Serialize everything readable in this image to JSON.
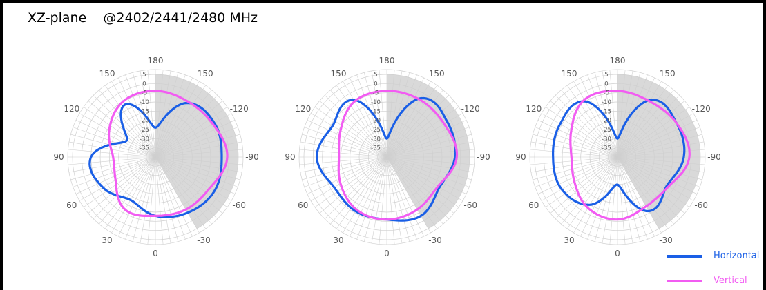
{
  "title": "XZ-plane    @2402/2441/2480 MHz",
  "chart_data": [
    {
      "type": "polar-line",
      "frequency_mhz": 2402,
      "angle_labels": [
        "180",
        "-150",
        "-120",
        "-90",
        "-60",
        "-30",
        "0",
        "30",
        "60",
        "90",
        "120",
        "150"
      ],
      "radial_labels": [
        "5",
        "0",
        "-5",
        "-10",
        "-15",
        "-20",
        "-25",
        "-30",
        "-35"
      ],
      "rlim": [
        -40,
        5
      ],
      "shaded_sector_deg": [
        -180,
        -30
      ],
      "series": [
        {
          "name": "Horizontal",
          "color": "#1a5fe6",
          "theta": [
            0,
            30,
            60,
            90,
            120,
            150,
            180,
            210,
            240,
            270,
            300,
            330,
            360
          ],
          "r": [
            -8,
            -13,
            -7,
            -5,
            -22,
            -7,
            -24,
            -6,
            -3,
            -4,
            -3,
            -5,
            -8
          ]
        },
        {
          "name": "Vertical",
          "color": "#f25cf2",
          "theta": [
            0,
            30,
            60,
            90,
            120,
            150,
            180,
            210,
            240,
            270,
            300,
            330,
            360
          ],
          "r": [
            -8,
            -7,
            -15,
            -17,
            -11,
            -5,
            -4,
            -5,
            -4,
            -1,
            -6,
            -7,
            -8
          ]
        }
      ]
    },
    {
      "type": "polar-line",
      "frequency_mhz": 2441,
      "angle_labels": [
        "180",
        "-150",
        "-120",
        "-90",
        "-60",
        "-30",
        "0",
        "30",
        "60",
        "90",
        "120",
        "150"
      ],
      "radial_labels": [
        "5",
        "0",
        "-5",
        "-10",
        "-15",
        "-20",
        "-25",
        "-30",
        "-35"
      ],
      "rlim": [
        -40,
        5
      ],
      "shaded_sector_deg": [
        -180,
        -30
      ],
      "series": [
        {
          "name": "Horizontal",
          "color": "#1a5fe6",
          "theta": [
            0,
            30,
            60,
            90,
            120,
            150,
            180,
            210,
            240,
            270,
            300,
            330,
            360
          ],
          "r": [
            -6,
            -6,
            -7,
            -2,
            -6,
            -4,
            -30,
            -3,
            -2,
            -3,
            -7,
            -3,
            -6
          ]
        },
        {
          "name": "Vertical",
          "color": "#f25cf2",
          "theta": [
            0,
            30,
            60,
            90,
            120,
            150,
            180,
            210,
            240,
            270,
            300,
            330,
            360
          ],
          "r": [
            -6,
            -7,
            -11,
            -14,
            -11,
            -5,
            -4,
            -4,
            -4,
            -2,
            -8,
            -7,
            -6
          ]
        }
      ]
    },
    {
      "type": "polar-line",
      "frequency_mhz": 2480,
      "angle_labels": [
        "180",
        "-150",
        "-120",
        "-90",
        "-60",
        "-30",
        "0",
        "30",
        "60",
        "90",
        "120",
        "150"
      ],
      "radial_labels": [
        "5",
        "0",
        "-5",
        "-10",
        "-15",
        "-20",
        "-25",
        "-30",
        "-35"
      ],
      "rlim": [
        -40,
        5
      ],
      "shaded_sector_deg": [
        -180,
        -30
      ],
      "series": [
        {
          "name": "Horizontal",
          "color": "#1a5fe6",
          "theta": [
            0,
            30,
            60,
            90,
            120,
            150,
            180,
            210,
            240,
            270,
            300,
            330,
            360
          ],
          "r": [
            -25,
            -10,
            -5,
            -5,
            -4,
            -5,
            -30,
            -4,
            -3,
            -4,
            -9,
            -6,
            -25
          ]
        },
        {
          "name": "Vertical",
          "color": "#f25cf2",
          "theta": [
            0,
            30,
            60,
            90,
            120,
            150,
            180,
            210,
            240,
            270,
            300,
            330,
            360
          ],
          "r": [
            -6,
            -8,
            -13,
            -15,
            -11,
            -4,
            -4,
            -5,
            -3,
            -1,
            -8,
            -9,
            -6
          ]
        }
      ]
    }
  ],
  "legend": [
    {
      "label": "Horizontal",
      "color": "#1a5fe6"
    },
    {
      "label": "Vertical",
      "color": "#f25cf2"
    }
  ]
}
